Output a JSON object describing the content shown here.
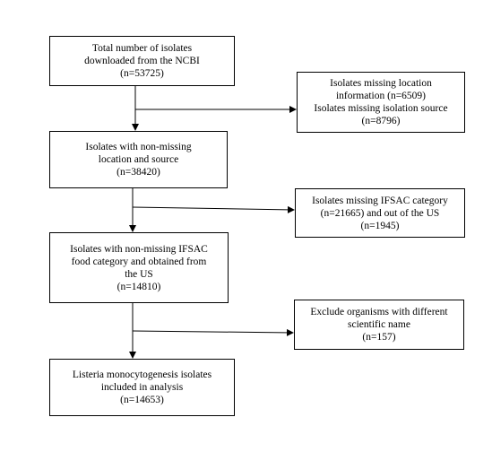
{
  "flowchart": {
    "main_steps": [
      {
        "lines": [
          "Total number of isolates",
          "downloaded from the NCBI",
          "(n=53725)"
        ]
      },
      {
        "lines": [
          "Isolates with non-missing",
          "location and source",
          "(n=38420)"
        ]
      },
      {
        "lines": [
          "Isolates with non-missing IFSAC",
          "food category and obtained from",
          "the US",
          "(n=14810)"
        ]
      },
      {
        "lines": [
          "Listeria monocytogenesis isolates",
          "included in analysis",
          "(n=14653)"
        ]
      }
    ],
    "exclusions": [
      {
        "lines": [
          "Isolates missing location",
          "information (n=6509)",
          "Isolates missing isolation source",
          "(n=8796)"
        ]
      },
      {
        "lines": [
          "Isolates missing IFSAC category",
          "(n=21665) and out of the US",
          "(n=1945)"
        ]
      },
      {
        "lines": [
          "Exclude organisms with different",
          "scientific name",
          "(n=157)"
        ]
      }
    ],
    "colors": {
      "line": "#000000",
      "box_border": "#000000",
      "background": "#ffffff"
    }
  }
}
